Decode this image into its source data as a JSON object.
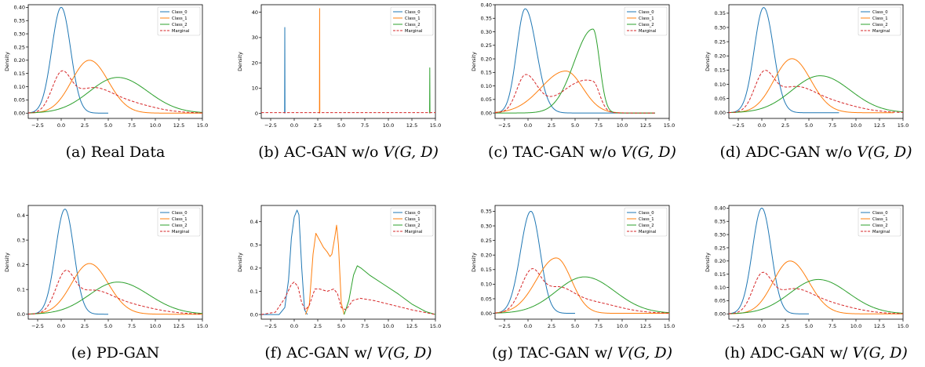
{
  "figure": {
    "panels": [
      {
        "id": "a",
        "caption_prefix": "(a) Real Data",
        "caption_var": "",
        "ylabel": "Density",
        "xticks": [
          "−2.5",
          "0.0",
          "2.5",
          "5.0",
          "7.5",
          "10.0",
          "12.5",
          "15.0"
        ],
        "yticks": [
          "0.00",
          "0.05",
          "0.10",
          "0.15",
          "0.20",
          "0.25",
          "0.30",
          "0.35",
          "0.40"
        ],
        "legend": [
          "Class_0",
          "Class_1",
          "Class_2",
          "Marginal"
        ]
      },
      {
        "id": "b",
        "caption_prefix": "(b) AC-GAN w/o ",
        "caption_var": "V(G, D)",
        "ylabel": "Density",
        "xticks": [
          "−2.5",
          "0.0",
          "2.5",
          "5.0",
          "7.5",
          "10.0",
          "12.5",
          "15.0"
        ],
        "yticks": [
          "0",
          "10",
          "20",
          "30",
          "40"
        ],
        "legend": [
          "Class_0",
          "Class_1",
          "Class_2",
          "Marginal"
        ]
      },
      {
        "id": "c",
        "caption_prefix": "(c) TAC-GAN w/o ",
        "caption_var": "V(G, D)",
        "ylabel": "Density",
        "xticks": [
          "−2.5",
          "0.0",
          "2.5",
          "5.0",
          "7.5",
          "10.0",
          "12.5",
          "15.0"
        ],
        "yticks": [
          "0.00",
          "0.05",
          "0.10",
          "0.15",
          "0.20",
          "0.25",
          "0.30",
          "0.35",
          "0.40"
        ],
        "legend": [
          "Class_0",
          "Class_1",
          "Class_2",
          "Marginal"
        ]
      },
      {
        "id": "d",
        "caption_prefix": "(d) ADC-GAN w/o ",
        "caption_var": "V(G, D)",
        "ylabel": "Density",
        "xticks": [
          "−2.5",
          "0.0",
          "2.5",
          "5.0",
          "7.5",
          "10.0",
          "12.5",
          "15.0"
        ],
        "yticks": [
          "0.00",
          "0.05",
          "0.10",
          "0.15",
          "0.20",
          "0.25",
          "0.30",
          "0.35"
        ],
        "legend": [
          "Class_0",
          "Class_1",
          "Class_2",
          "Marginal"
        ]
      },
      {
        "id": "e",
        "caption_prefix": "(e) PD-GAN",
        "caption_var": "",
        "ylabel": "Density",
        "xticks": [
          "−2.5",
          "0.0",
          "2.5",
          "5.0",
          "7.5",
          "10.0",
          "12.5",
          "15.0"
        ],
        "yticks": [
          "0.0",
          "0.1",
          "0.2",
          "0.3",
          "0.4"
        ],
        "legend": [
          "Class_0",
          "Class_1",
          "Class_2",
          "Marginal"
        ]
      },
      {
        "id": "f",
        "caption_prefix": "(f) AC-GAN w/ ",
        "caption_var": "V(G, D)",
        "ylabel": "Density",
        "xticks": [
          "−2.5",
          "0.0",
          "2.5",
          "5.0",
          "7.5",
          "10.0",
          "12.5",
          "15.0"
        ],
        "yticks": [
          "0.0",
          "0.1",
          "0.2",
          "0.3",
          "0.4"
        ],
        "legend": [
          "Class_0",
          "Class_1",
          "Class_2",
          "Marginal"
        ]
      },
      {
        "id": "g",
        "caption_prefix": "(g) TAC-GAN w/ ",
        "caption_var": "V(G, D)",
        "ylabel": "Density",
        "xticks": [
          "−2.5",
          "0.0",
          "2.5",
          "5.0",
          "7.5",
          "10.0",
          "12.5",
          "15.0"
        ],
        "yticks": [
          "0.00",
          "0.05",
          "0.10",
          "0.15",
          "0.20",
          "0.25",
          "0.30",
          "0.35"
        ],
        "legend": [
          "Class_0",
          "Class_1",
          "Class_2",
          "Marginal"
        ]
      },
      {
        "id": "h",
        "caption_prefix": "(h) ADC-GAN w/ ",
        "caption_var": "V(G, D)",
        "ylabel": "Density",
        "xticks": [
          "−2.5",
          "0.0",
          "2.5",
          "5.0",
          "7.5",
          "10.0",
          "12.5",
          "15.0"
        ],
        "yticks": [
          "0.00",
          "0.05",
          "0.10",
          "0.15",
          "0.20",
          "0.25",
          "0.30",
          "0.35",
          "0.40"
        ],
        "legend": [
          "Class_0",
          "Class_1",
          "Class_2",
          "Marginal"
        ]
      }
    ]
  },
  "chart_data": [
    {
      "id": "a",
      "type": "line",
      "xlim": [
        -3.5,
        15.0
      ],
      "ylim": [
        -0.02,
        0.41
      ],
      "yticks_values": [
        0,
        0.05,
        0.1,
        0.15,
        0.2,
        0.25,
        0.3,
        0.35,
        0.4
      ],
      "series": [
        {
          "name": "Class_0",
          "color": "#1f77b4",
          "style": "solid",
          "mode": "gauss",
          "peak": 0.4,
          "mu": 0.0,
          "sl": 1.0,
          "sr": 1.0,
          "xmin": -3.5,
          "xmax": 5
        },
        {
          "name": "Class_1",
          "color": "#ff7f0e",
          "style": "solid",
          "mode": "gauss",
          "peak": 0.2,
          "mu": 3.0,
          "sl": 1.9,
          "sr": 2.0,
          "xmin": -3.5,
          "xmax": 15
        },
        {
          "name": "Class_2",
          "color": "#2ca02c",
          "style": "solid",
          "mode": "gauss",
          "peak": 0.135,
          "mu": 6.0,
          "sl": 3.0,
          "sr": 3.2,
          "xmin": -3.5,
          "xmax": 15
        },
        {
          "name": "Marginal",
          "color": "#d62728",
          "style": "dashed",
          "mode": "mix",
          "members": [
            0,
            1,
            2
          ],
          "xmin": -3.5,
          "xmax": 15
        }
      ]
    },
    {
      "id": "b",
      "type": "line",
      "xlim": [
        -3.5,
        15.0
      ],
      "ylim": [
        -2,
        43
      ],
      "yticks_values": [
        0,
        10,
        20,
        30,
        40
      ],
      "series": [
        {
          "name": "Class_0",
          "color": "#1f77b4",
          "style": "solid",
          "mode": "spike",
          "x": -1.0,
          "peak": 34.0
        },
        {
          "name": "Class_1",
          "color": "#ff7f0e",
          "style": "solid",
          "mode": "spike",
          "x": 2.7,
          "peak": 41.5
        },
        {
          "name": "Class_2",
          "color": "#2ca02c",
          "style": "solid",
          "mode": "spike",
          "x": 14.4,
          "peak": 18.0
        },
        {
          "name": "Marginal",
          "color": "#d62728",
          "style": "dashed",
          "mode": "flat",
          "y": 0.3,
          "xmin": -3.5,
          "xmax": 15
        }
      ]
    },
    {
      "id": "c",
      "type": "line",
      "xlim": [
        -3.5,
        15.0
      ],
      "ylim": [
        -0.02,
        0.4
      ],
      "yticks_values": [
        0,
        0.05,
        0.1,
        0.15,
        0.2,
        0.25,
        0.3,
        0.35,
        0.4
      ],
      "series": [
        {
          "name": "Class_0",
          "color": "#1f77b4",
          "style": "solid",
          "mode": "gauss",
          "peak": 0.385,
          "mu": -0.3,
          "sl": 0.9,
          "sr": 1.2,
          "xmin": -3.5,
          "xmax": 13.5
        },
        {
          "name": "Class_1",
          "color": "#ff7f0e",
          "style": "solid",
          "mode": "gauss",
          "peak": 0.155,
          "mu": 4.0,
          "sl": 2.6,
          "sr": 1.8,
          "xmin": -3.5,
          "xmax": 13.5
        },
        {
          "name": "Class_2",
          "color": "#2ca02c",
          "style": "solid",
          "mode": "gauss",
          "peak": 0.31,
          "mu": 6.9,
          "sl": 2.0,
          "sr": 0.7,
          "xmin": -3.5,
          "xmax": 13.5
        },
        {
          "name": "Marginal",
          "color": "#d62728",
          "style": "dashed",
          "mode": "mix",
          "members": [
            0,
            1,
            2
          ],
          "xmin": -3.5,
          "xmax": 13.5
        }
      ]
    },
    {
      "id": "d",
      "type": "line",
      "xlim": [
        -3.5,
        15.0
      ],
      "ylim": [
        -0.02,
        0.38
      ],
      "yticks_values": [
        0,
        0.05,
        0.1,
        0.15,
        0.2,
        0.25,
        0.3,
        0.35
      ],
      "series": [
        {
          "name": "Class_0",
          "color": "#1f77b4",
          "style": "solid",
          "mode": "gauss",
          "peak": 0.37,
          "mu": 0.2,
          "sl": 1.0,
          "sr": 1.05,
          "xmin": -3.5,
          "xmax": 8.2
        },
        {
          "name": "Class_1",
          "color": "#ff7f0e",
          "style": "solid",
          "mode": "gauss",
          "peak": 0.19,
          "mu": 3.2,
          "sl": 1.9,
          "sr": 2.0,
          "xmin": -3.5,
          "xmax": 14
        },
        {
          "name": "Class_2",
          "color": "#2ca02c",
          "style": "solid",
          "mode": "gauss",
          "peak": 0.13,
          "mu": 6.2,
          "sl": 3.0,
          "sr": 3.2,
          "xmin": -3.5,
          "xmax": 15
        },
        {
          "name": "Marginal",
          "color": "#d62728",
          "style": "dashed",
          "mode": "mix",
          "members": [
            0,
            1,
            2
          ],
          "xmin": -3.5,
          "xmax": 15
        }
      ]
    },
    {
      "id": "e",
      "type": "line",
      "xlim": [
        -3.5,
        15.0
      ],
      "ylim": [
        -0.02,
        0.44
      ],
      "yticks_values": [
        0,
        0.1,
        0.2,
        0.3,
        0.4
      ],
      "series": [
        {
          "name": "Class_0",
          "color": "#1f77b4",
          "style": "solid",
          "mode": "gauss",
          "peak": 0.425,
          "mu": 0.4,
          "sl": 1.0,
          "sr": 0.95,
          "xmin": -3.5,
          "xmax": 5
        },
        {
          "name": "Class_1",
          "color": "#ff7f0e",
          "style": "solid",
          "mode": "gauss",
          "peak": 0.205,
          "mu": 3.0,
          "sl": 1.9,
          "sr": 2.0,
          "xmin": -3.5,
          "xmax": 15
        },
        {
          "name": "Class_2",
          "color": "#2ca02c",
          "style": "solid",
          "mode": "gauss",
          "peak": 0.13,
          "mu": 6.0,
          "sl": 3.0,
          "sr": 3.3,
          "xmin": -3.5,
          "xmax": 15
        },
        {
          "name": "Marginal",
          "color": "#d62728",
          "style": "dashed",
          "mode": "mix",
          "members": [
            0,
            1,
            2
          ],
          "xmin": -3.5,
          "xmax": 15
        }
      ]
    },
    {
      "id": "f",
      "type": "line",
      "xlim": [
        -3.5,
        15.0
      ],
      "ylim": [
        -0.02,
        0.47
      ],
      "yticks_values": [
        0,
        0.1,
        0.2,
        0.3,
        0.4
      ],
      "series": [
        {
          "name": "Class_0",
          "color": "#1f77b4",
          "style": "solid",
          "mode": "points",
          "points": [
            [
              -3.5,
              0
            ],
            [
              -1.6,
              0
            ],
            [
              -1.0,
              0.03
            ],
            [
              -0.6,
              0.15
            ],
            [
              -0.3,
              0.33
            ],
            [
              0.0,
              0.42
            ],
            [
              0.3,
              0.45
            ],
            [
              0.5,
              0.43
            ],
            [
              0.8,
              0.2
            ],
            [
              1.1,
              0.02
            ],
            [
              1.4,
              0
            ]
          ]
        },
        {
          "name": "Class_1",
          "color": "#ff7f0e",
          "style": "solid",
          "mode": "points",
          "points": [
            [
              1.2,
              0
            ],
            [
              1.6,
              0.04
            ],
            [
              2.0,
              0.26
            ],
            [
              2.3,
              0.35
            ],
            [
              2.7,
              0.32
            ],
            [
              3.1,
              0.29
            ],
            [
              3.5,
              0.27
            ],
            [
              3.8,
              0.25
            ],
            [
              4.0,
              0.26
            ],
            [
              4.3,
              0.33
            ],
            [
              4.5,
              0.385
            ],
            [
              4.7,
              0.3
            ],
            [
              5.0,
              0.05
            ],
            [
              5.3,
              0
            ]
          ]
        },
        {
          "name": "Class_2",
          "color": "#2ca02c",
          "style": "solid",
          "mode": "points",
          "points": [
            [
              5.3,
              0
            ],
            [
              5.8,
              0.06
            ],
            [
              6.3,
              0.17
            ],
            [
              6.7,
              0.21
            ],
            [
              7.1,
              0.2
            ],
            [
              8.0,
              0.17
            ],
            [
              9.5,
              0.13
            ],
            [
              11.0,
              0.09
            ],
            [
              12.5,
              0.045
            ],
            [
              14.0,
              0.012
            ],
            [
              15.0,
              0
            ]
          ]
        },
        {
          "name": "Marginal",
          "color": "#d62728",
          "style": "dashed",
          "mode": "points",
          "points": [
            [
              -3.5,
              0
            ],
            [
              -2.0,
              0.01
            ],
            [
              -1.0,
              0.07
            ],
            [
              -0.3,
              0.13
            ],
            [
              0.0,
              0.14
            ],
            [
              0.4,
              0.12
            ],
            [
              0.8,
              0.05
            ],
            [
              1.2,
              0.02
            ],
            [
              1.6,
              0.04
            ],
            [
              2.2,
              0.11
            ],
            [
              2.7,
              0.11
            ],
            [
              3.5,
              0.1
            ],
            [
              4.2,
              0.11
            ],
            [
              4.6,
              0.09
            ],
            [
              5.0,
              0.03
            ],
            [
              5.5,
              0.02
            ],
            [
              6.2,
              0.06
            ],
            [
              7.0,
              0.07
            ],
            [
              8.5,
              0.06
            ],
            [
              10.5,
              0.04
            ],
            [
              12.5,
              0.02
            ],
            [
              15.0,
              0
            ]
          ]
        }
      ]
    },
    {
      "id": "g",
      "type": "line",
      "xlim": [
        -3.5,
        15.0
      ],
      "ylim": [
        -0.02,
        0.37
      ],
      "yticks_values": [
        0,
        0.05,
        0.1,
        0.15,
        0.2,
        0.25,
        0.3,
        0.35
      ],
      "series": [
        {
          "name": "Class_0",
          "color": "#1f77b4",
          "style": "solid",
          "mode": "gauss",
          "peak": 0.35,
          "mu": 0.3,
          "sl": 1.1,
          "sr": 1.0,
          "xmin": -3.5,
          "xmax": 5
        },
        {
          "name": "Class_1",
          "color": "#ff7f0e",
          "style": "solid",
          "mode": "gauss",
          "peak": 0.19,
          "mu": 3.0,
          "sl": 2.1,
          "sr": 1.6,
          "xmin": -3.5,
          "xmax": 15
        },
        {
          "name": "Class_2",
          "color": "#2ca02c",
          "style": "solid",
          "mode": "gauss",
          "peak": 0.125,
          "mu": 6.0,
          "sl": 3.0,
          "sr": 3.2,
          "xmin": -3.5,
          "xmax": 15
        },
        {
          "name": "Marginal",
          "color": "#d62728",
          "style": "dashed",
          "mode": "mix",
          "members": [
            0,
            1,
            2
          ],
          "xmin": -3.5,
          "xmax": 15
        }
      ]
    },
    {
      "id": "h",
      "type": "line",
      "xlim": [
        -3.5,
        15.0
      ],
      "ylim": [
        -0.02,
        0.41
      ],
      "yticks_values": [
        0,
        0.05,
        0.1,
        0.15,
        0.2,
        0.25,
        0.3,
        0.35,
        0.4
      ],
      "series": [
        {
          "name": "Class_0",
          "color": "#1f77b4",
          "style": "solid",
          "mode": "gauss",
          "peak": 0.4,
          "mu": 0.0,
          "sl": 1.0,
          "sr": 1.0,
          "xmin": -3.5,
          "xmax": 5
        },
        {
          "name": "Class_1",
          "color": "#ff7f0e",
          "style": "solid",
          "mode": "gauss",
          "peak": 0.2,
          "mu": 3.0,
          "sl": 1.8,
          "sr": 2.0,
          "xmin": -3.5,
          "xmax": 15
        },
        {
          "name": "Class_2",
          "color": "#2ca02c",
          "style": "solid",
          "mode": "gauss",
          "peak": 0.13,
          "mu": 6.0,
          "sl": 3.0,
          "sr": 3.2,
          "xmin": -3.5,
          "xmax": 15
        },
        {
          "name": "Marginal",
          "color": "#d62728",
          "style": "dashed",
          "mode": "mix",
          "members": [
            0,
            1,
            2
          ],
          "xmin": -3.5,
          "xmax": 15
        }
      ]
    }
  ]
}
